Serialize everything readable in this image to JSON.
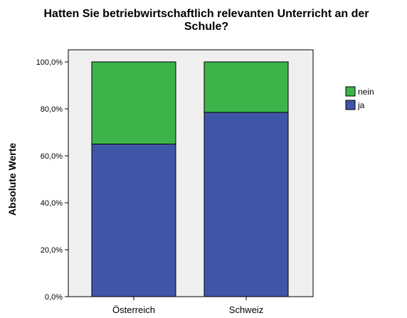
{
  "chart_data": {
    "type": "bar",
    "stacked": true,
    "title_lines": [
      "Hatten Sie betriebwirtschaftlich relevanten Unterricht an der",
      "Schule?"
    ],
    "ylabel": "Absolute Werte",
    "xlabel": "",
    "categories": [
      "Österreich",
      "Schweiz"
    ],
    "series": [
      {
        "name": "ja",
        "values": [
          65.0,
          78.5
        ],
        "color": "#3f55a8"
      },
      {
        "name": "nein",
        "values": [
          35.0,
          21.5
        ],
        "color": "#3cb44a"
      }
    ],
    "ylim": [
      0,
      100
    ],
    "yticks": [
      0,
      20,
      40,
      60,
      80,
      100
    ],
    "ytick_labels": [
      "0,0%",
      "20,0%",
      "40,0%",
      "60,0%",
      "80,0%",
      "100,0%"
    ],
    "grid": false,
    "legend_position": "top-right",
    "plot_background": "#efefef"
  }
}
